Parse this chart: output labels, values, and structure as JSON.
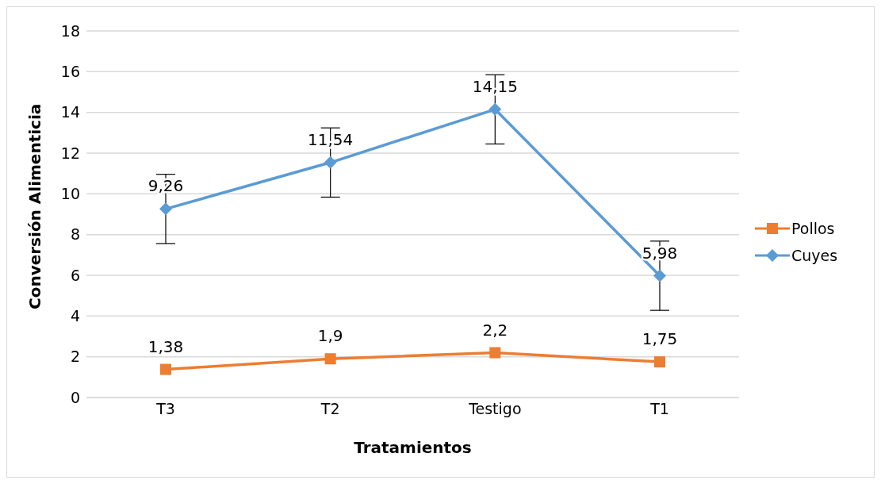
{
  "chart_data": {
    "type": "line",
    "xlabel": "Tratamientos",
    "ylabel": "Conversión Alimenticia",
    "categories": [
      "T3",
      "T2",
      "Testigo",
      "T1"
    ],
    "ylim": [
      0,
      18
    ],
    "yticks": [
      0,
      2,
      4,
      6,
      8,
      10,
      12,
      14,
      16,
      18
    ],
    "grid": "y",
    "legend": "right",
    "series": [
      {
        "name": "Pollos",
        "color": "#ed7d31",
        "marker": "square",
        "values": [
          1.38,
          1.9,
          2.2,
          1.75
        ],
        "value_labels": [
          "1,38",
          "1,9",
          "2,2",
          "1,75"
        ]
      },
      {
        "name": "Cuyes",
        "color": "#5b9bd5",
        "marker": "diamond",
        "values": [
          9.26,
          11.54,
          14.15,
          5.98
        ],
        "value_labels": [
          "9,26",
          "11,54",
          "14,15",
          "5,98"
        ],
        "errors": [
          1.7,
          1.7,
          1.7,
          1.7
        ]
      }
    ]
  }
}
